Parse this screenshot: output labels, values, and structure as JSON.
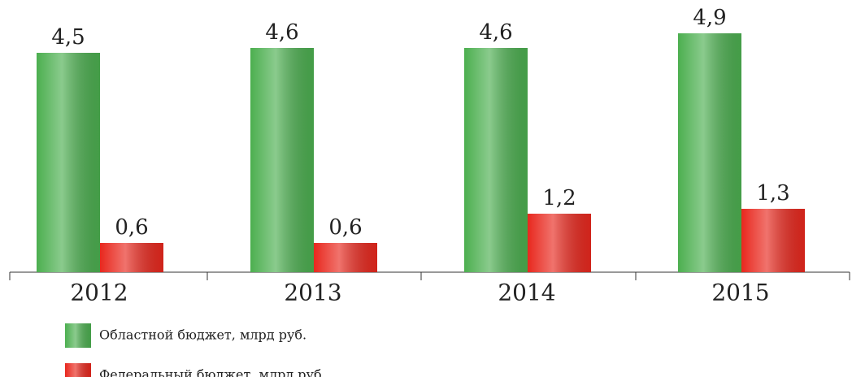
{
  "chart_data": {
    "type": "bar",
    "categories": [
      "2012",
      "2013",
      "2014",
      "2015"
    ],
    "series": [
      {
        "name": "Областной бюджет, млрд руб.",
        "color": "#4caf50",
        "values": [
          4.5,
          4.6,
          4.6,
          4.9
        ],
        "value_labels": [
          "4,5",
          "4,6",
          "4,6",
          "4,9"
        ]
      },
      {
        "name": "Федеральный бюджет, млрд руб.",
        "color": "#e8281e",
        "values": [
          0.6,
          0.6,
          1.2,
          1.3
        ],
        "value_labels": [
          "0,6",
          "0,6",
          "1,2",
          "1,3"
        ]
      }
    ],
    "legend": "bottom-left"
  }
}
